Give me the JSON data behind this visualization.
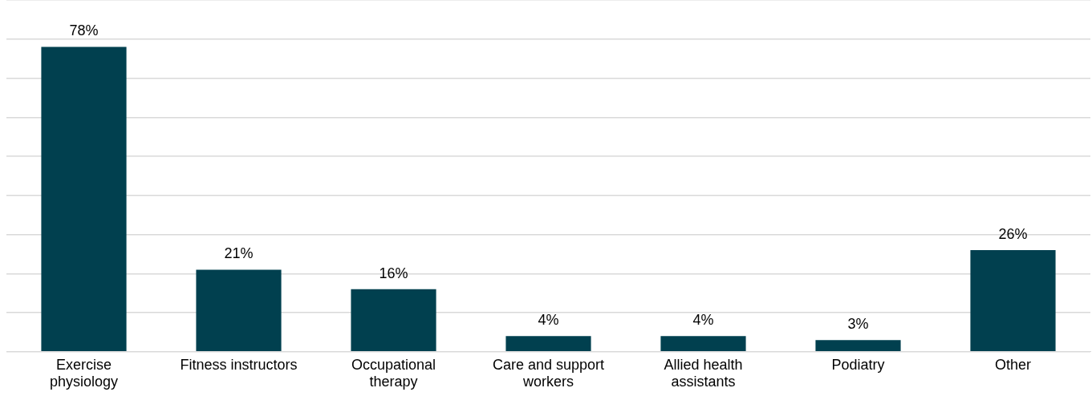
{
  "chart_data": {
    "type": "bar",
    "categories": [
      "Exercise physiology",
      "Fitness instructors",
      "Occupational therapy",
      "Care and support workers",
      "Allied health assistants",
      "Podiatry",
      "Other"
    ],
    "values": [
      78,
      21,
      16,
      4,
      4,
      3,
      26
    ],
    "value_labels": [
      "78%",
      "21%",
      "16%",
      "4%",
      "4%",
      "3%",
      "26%"
    ],
    "color": "#01404f",
    "ylim": [
      0,
      90
    ],
    "yticks": [
      {
        "value": 0,
        "label": null
      },
      {
        "value": 10,
        "label": null
      },
      {
        "value": 20,
        "label": null
      },
      {
        "value": 30,
        "label": null
      },
      {
        "value": 40,
        "label": null
      },
      {
        "value": 50,
        "label": null
      },
      {
        "value": 60,
        "label": null
      },
      {
        "value": 70,
        "label": null
      },
      {
        "value": 80,
        "label": null
      },
      {
        "value": 90,
        "label": null
      }
    ],
    "grid": "y",
    "tick_labels": "x",
    "legend": false
  }
}
